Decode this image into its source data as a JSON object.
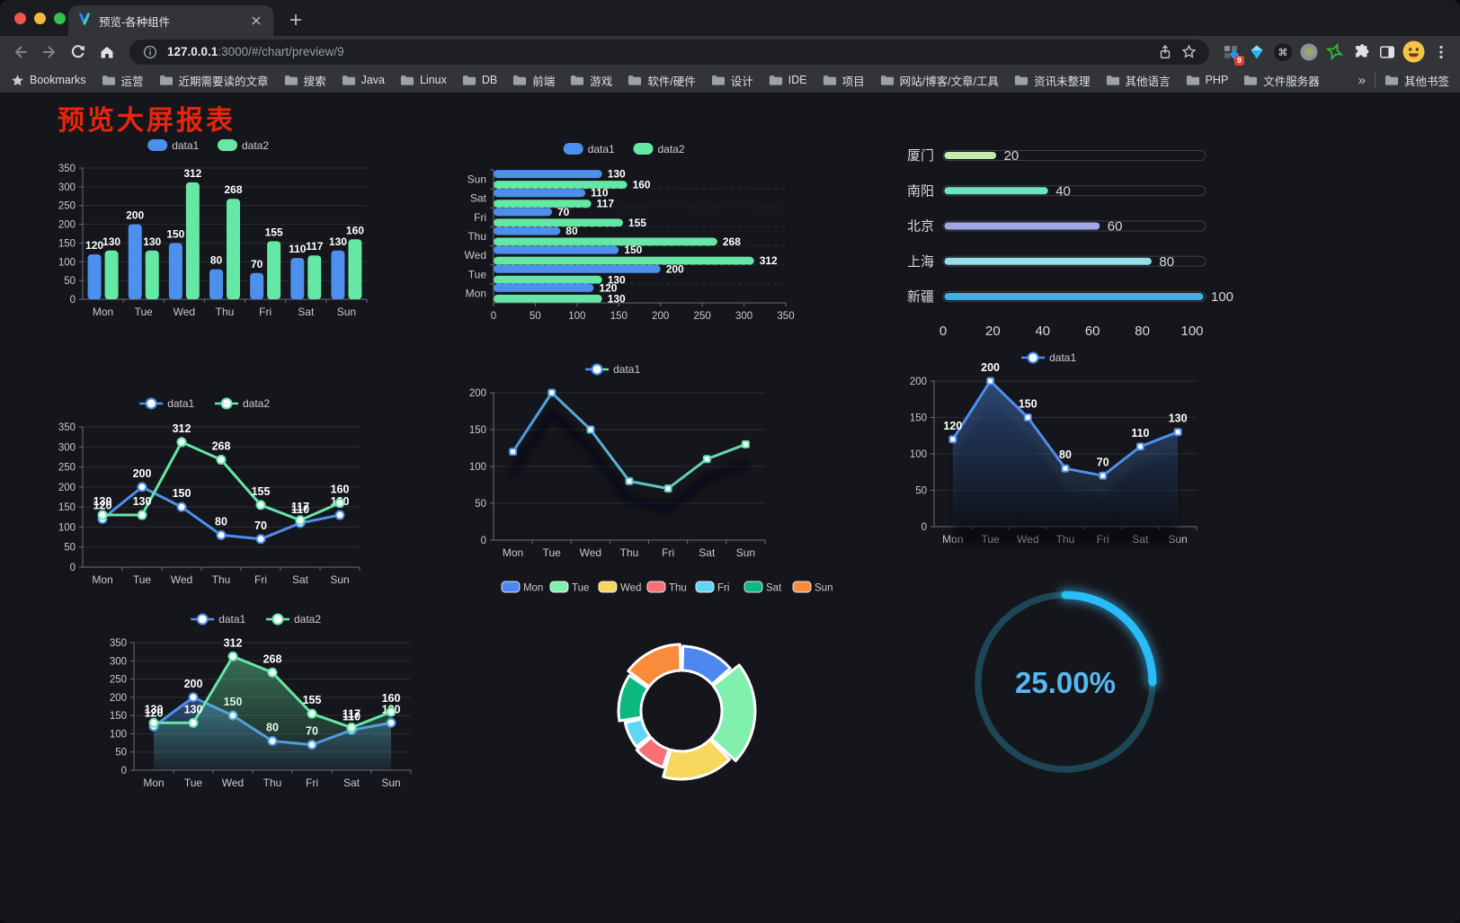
{
  "browser": {
    "tab_title": "预览-各种组件",
    "url_host": "127.0.0.1",
    "url_rest": ":3000/#/chart/preview/9",
    "extension_badge": "9",
    "bookmarks_label": "Bookmarks",
    "bookmarks": [
      "运营",
      "近期需要读的文章",
      "搜索",
      "Java",
      "Linux",
      "DB",
      "前端",
      "游戏",
      "软件/硬件",
      "设计",
      "IDE",
      "项目",
      "网站/博客/文章/工具",
      "资讯未整理",
      "其他语言",
      "PHP",
      "文件服务器"
    ],
    "overflow_chevron": "»",
    "other_bookmarks": "其他书签"
  },
  "page": {
    "title": "预览大屏报表",
    "title_color": "#e8250e",
    "background": "#15161b"
  },
  "chart_data": [
    {
      "id": "bar-grouped",
      "type": "bar",
      "legend_position": "top",
      "grid": true,
      "categories": [
        "Mon",
        "Tue",
        "Wed",
        "Thu",
        "Fri",
        "Sat",
        "Sun"
      ],
      "series": [
        {
          "name": "data1",
          "color": "#4d8fec",
          "values": [
            120,
            200,
            150,
            80,
            70,
            110,
            130
          ]
        },
        {
          "name": "data2",
          "color": "#65e8a6",
          "values": [
            130,
            130,
            312,
            268,
            155,
            117,
            160
          ]
        }
      ],
      "ylim": [
        0,
        350
      ],
      "ytick": 50
    },
    {
      "id": "bar-horizontal",
      "type": "bar-horizontal",
      "legend_position": "top",
      "categories_top_to_bottom": [
        "Sun",
        "Sat",
        "Fri",
        "Thu",
        "Wed",
        "Tue",
        "Mon"
      ],
      "series": [
        {
          "name": "data1",
          "color": "#4d8fec",
          "values_top_to_bottom": [
            130,
            110,
            70,
            80,
            150,
            200,
            120
          ]
        },
        {
          "name": "data2",
          "color": "#65e8a6",
          "values_top_to_bottom": [
            160,
            117,
            155,
            268,
            312,
            130,
            130
          ]
        }
      ],
      "xlim": [
        0,
        350
      ],
      "xtick": 50
    },
    {
      "id": "progress",
      "type": "progress",
      "max": 100,
      "items": [
        {
          "label": "厦门",
          "value": 20,
          "color": "#c4ebad"
        },
        {
          "label": "南阳",
          "value": 40,
          "color": "#6be6c1"
        },
        {
          "label": "北京",
          "value": 60,
          "color": "#a0a7e6"
        },
        {
          "label": "上海",
          "value": 80,
          "color": "#96dee8"
        },
        {
          "label": "新疆",
          "value": 100,
          "color": "#3fb1e3"
        }
      ],
      "xticks": [
        0,
        20,
        40,
        60,
        80,
        100
      ]
    },
    {
      "id": "line-dual",
      "type": "line",
      "legend_position": "top",
      "marker": "circle",
      "labels": true,
      "categories": [
        "Mon",
        "Tue",
        "Wed",
        "Thu",
        "Fri",
        "Sat",
        "Sun"
      ],
      "series": [
        {
          "name": "data1",
          "color": "#4d8fec",
          "values": [
            120,
            200,
            150,
            80,
            70,
            110,
            130
          ]
        },
        {
          "name": "data2",
          "color": "#65e8a6",
          "values": [
            130,
            130,
            312,
            268,
            155,
            117,
            160
          ]
        }
      ],
      "ylim": [
        0,
        350
      ],
      "ytick": 50
    },
    {
      "id": "line-gradient",
      "type": "line",
      "legend_position": "top",
      "marker": "rect",
      "labels": false,
      "shadow": true,
      "categories": [
        "Mon",
        "Tue",
        "Wed",
        "Thu",
        "Fri",
        "Sat",
        "Sun"
      ],
      "series": [
        {
          "name": "data1",
          "gradient": [
            "#4d8fec",
            "#65e8a6"
          ],
          "values": [
            120,
            200,
            150,
            80,
            70,
            110,
            130
          ]
        }
      ],
      "ylim": [
        0,
        200
      ],
      "ytick": 50
    },
    {
      "id": "line-area",
      "type": "line",
      "legend_position": "top",
      "marker": "rect",
      "labels": true,
      "categories": [
        "Mon",
        "Tue",
        "Wed",
        "Thu",
        "Fri",
        "Sat",
        "Sun"
      ],
      "series": [
        {
          "name": "data1",
          "color": "#4d8fec",
          "values": [
            120,
            200,
            150,
            80,
            70,
            110,
            130
          ],
          "area": true,
          "area_shadow": true
        }
      ],
      "ylim": [
        0,
        200
      ],
      "ytick": 50
    },
    {
      "id": "line-dual-area",
      "type": "line",
      "legend_position": "top",
      "marker": "circle",
      "labels": true,
      "categories": [
        "Mon",
        "Tue",
        "Wed",
        "Thu",
        "Fri",
        "Sat",
        "Sun"
      ],
      "series": [
        {
          "name": "data1",
          "color": "#4d8fec",
          "values": [
            120,
            200,
            150,
            80,
            70,
            110,
            130
          ],
          "area": true
        },
        {
          "name": "data2",
          "color": "#65e8a6",
          "values": [
            130,
            130,
            312,
            268,
            155,
            117,
            160
          ],
          "area": true
        }
      ],
      "ylim": [
        0,
        350
      ],
      "ytick": 50
    },
    {
      "id": "pie-rose",
      "type": "pie",
      "legend_position": "top",
      "rose": "radius",
      "inner_r": 45,
      "items": [
        {
          "label": "Mon",
          "value": 120,
          "color": "#4d88f0",
          "outer_r": 72
        },
        {
          "label": "Tue",
          "value": 200,
          "color": "#82f0ad",
          "outer_r": 82
        },
        {
          "label": "Wed",
          "value": 150,
          "color": "#f7d75e",
          "outer_r": 76
        },
        {
          "label": "Thu",
          "value": 80,
          "color": "#f96f75",
          "outer_r": 66
        },
        {
          "label": "Fri",
          "value": 70,
          "color": "#5fd5f7",
          "outer_r": 64
        },
        {
          "label": "Sat",
          "value": 110,
          "color": "#0db87e",
          "outer_r": 70
        },
        {
          "label": "Sun",
          "value": 130,
          "color": "#f98b3b",
          "outer_r": 74
        }
      ]
    },
    {
      "id": "gauge",
      "type": "gauge",
      "percent": 25,
      "value_label": "25.00%",
      "arc_color": "#28bdf7",
      "track_color": "#1d4656",
      "text_color": "#55b8f3"
    }
  ]
}
